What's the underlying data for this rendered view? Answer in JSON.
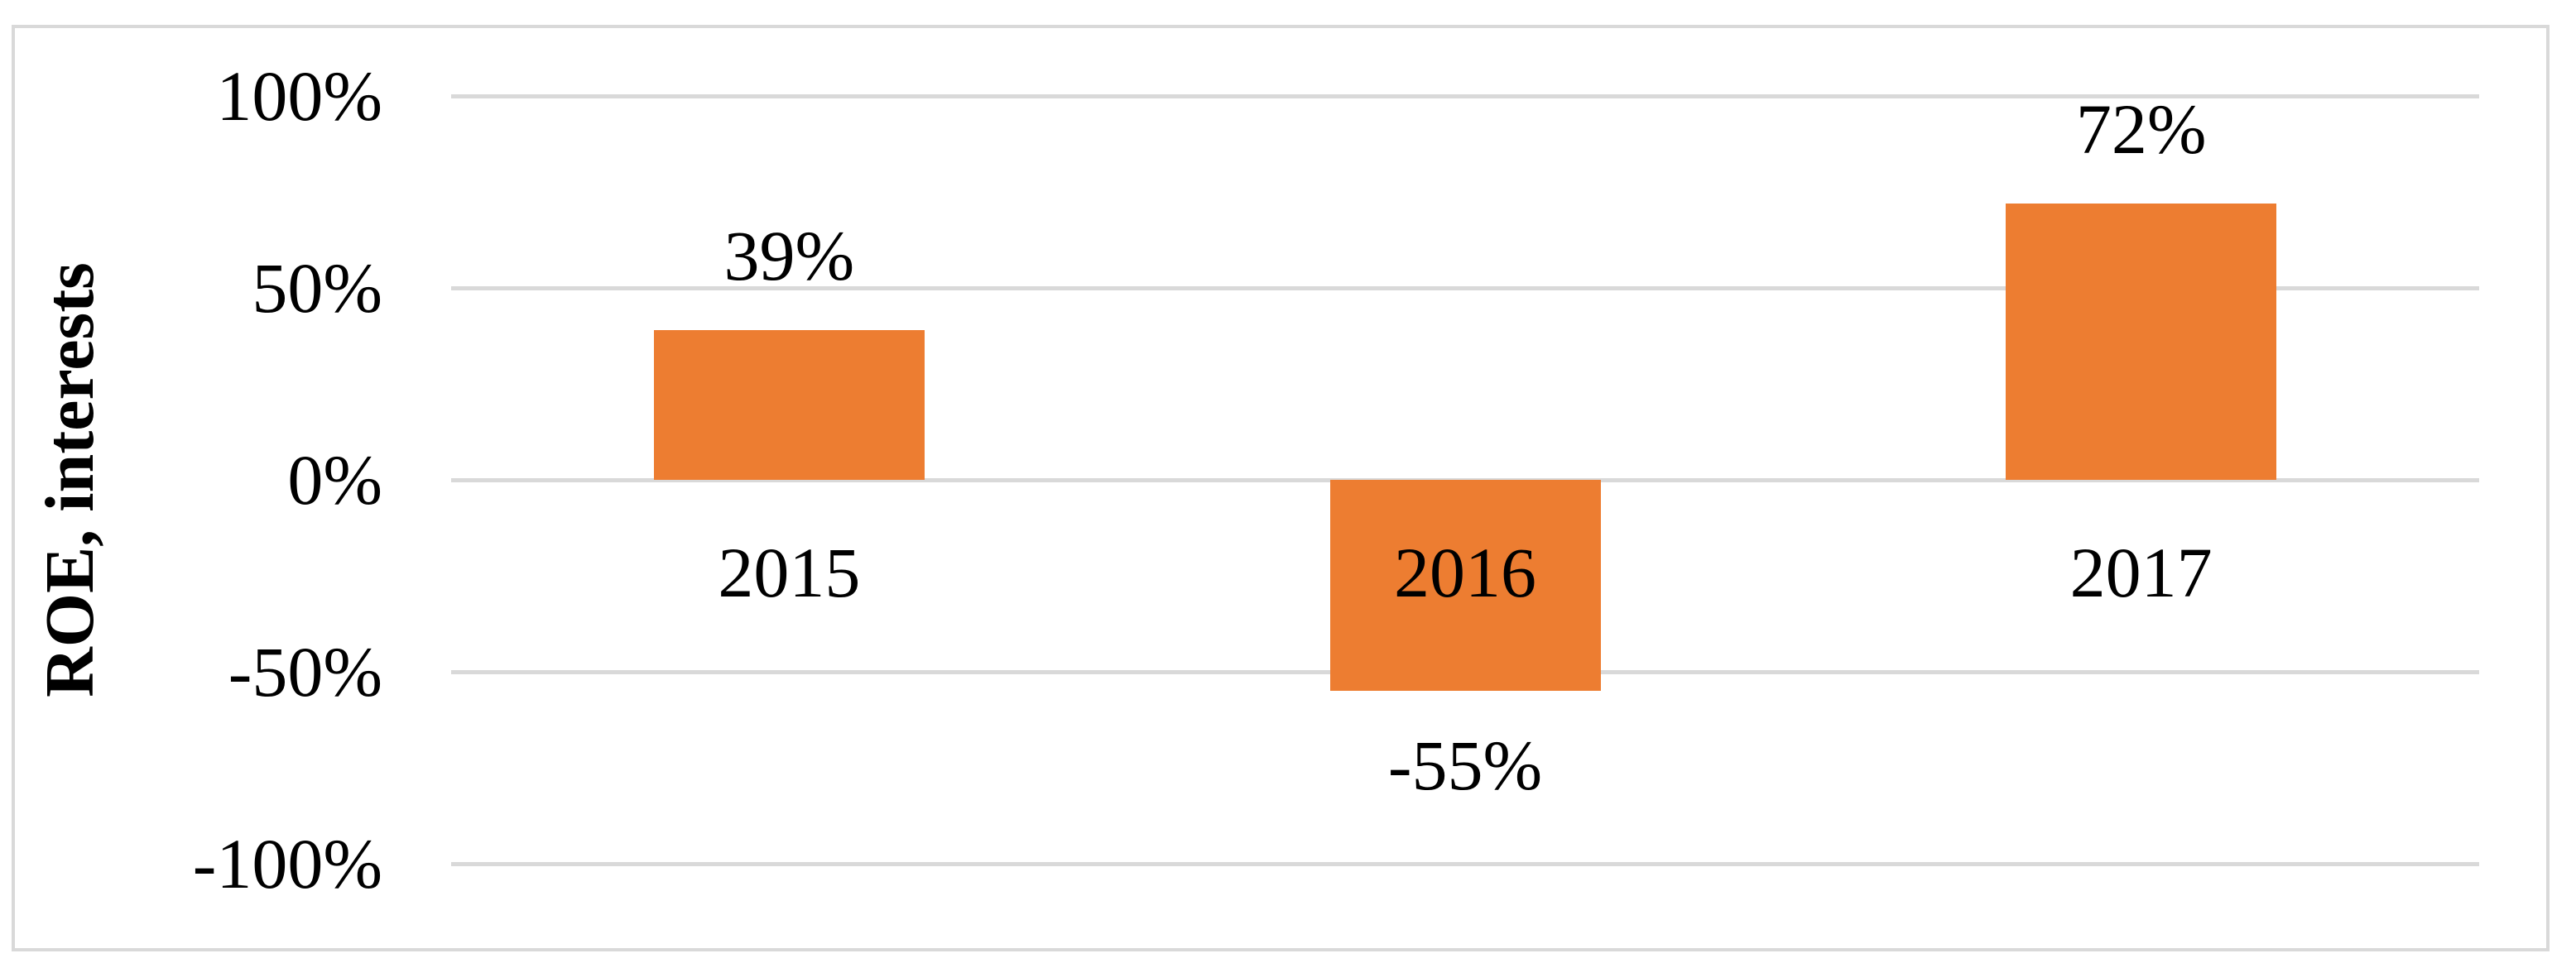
{
  "chart_data": {
    "type": "bar",
    "title": "",
    "categories": [
      "2015",
      "2016",
      "2017"
    ],
    "values": [
      39,
      -55,
      72
    ],
    "data_labels": [
      "39%",
      "-55%",
      "72%"
    ],
    "xlabel": "",
    "ylabel": "ROE, interests",
    "ylim": [
      -100,
      100
    ],
    "ytick_step": 50,
    "yticks": [
      100,
      50,
      0,
      -50,
      -100
    ],
    "ytick_labels": [
      "100%",
      "50%",
      "0%",
      "-50%",
      "-100%"
    ],
    "grid": true,
    "legend": "none",
    "series_name": "",
    "colors": {
      "bar": "#ED7D31",
      "gridline": "#D9D9D9",
      "frame_border": "#D9D9D9",
      "text": "#000000",
      "background": "#FFFFFF"
    }
  }
}
